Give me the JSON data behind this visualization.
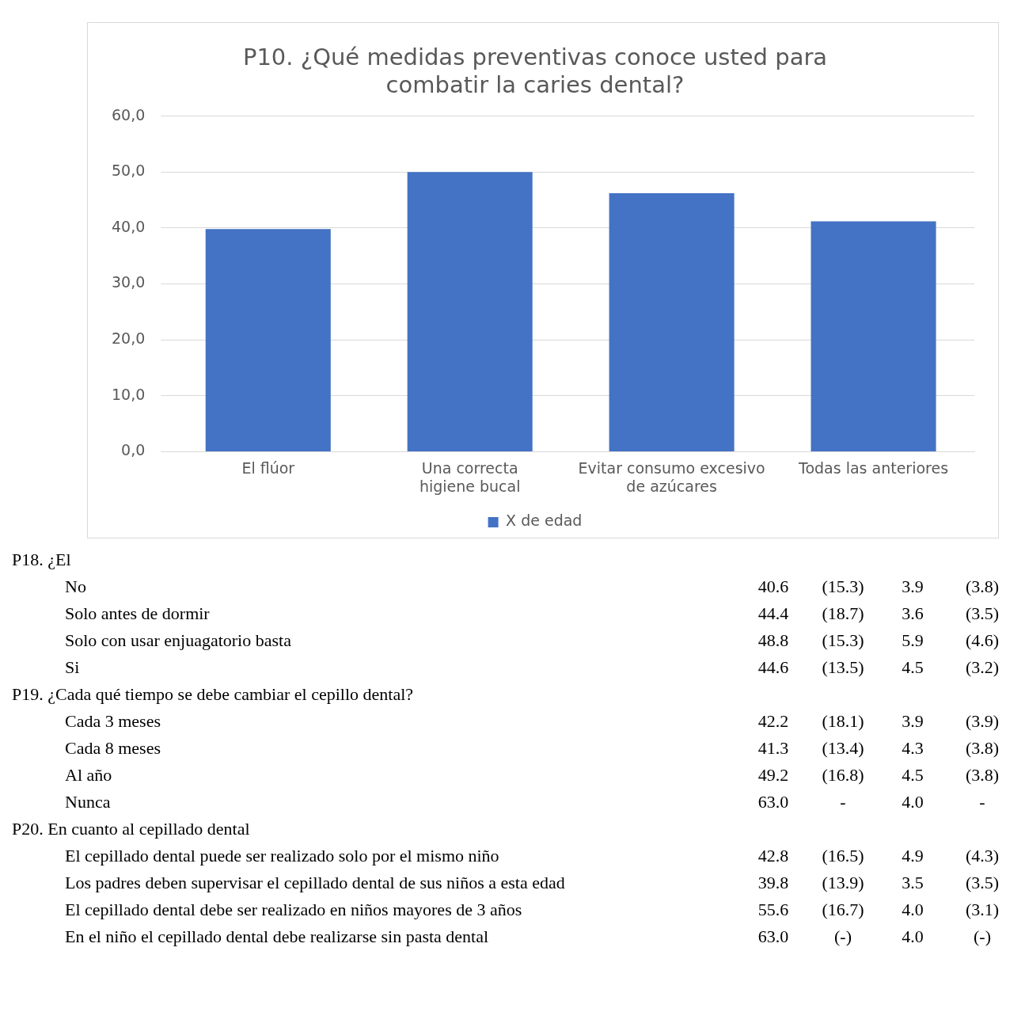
{
  "chart_data": {
    "type": "bar",
    "title": "P10. ¿Qué medidas preventivas conoce usted para combatir la caries dental?",
    "categories": [
      "El flúor",
      "Una correcta higiene bucal",
      "Evitar consumo excesivo de azúcares",
      "Todas las anteriores"
    ],
    "series": [
      {
        "name": "X de edad",
        "color": "#4472c4",
        "values": [
          39.8,
          50.0,
          46.2,
          41.2
        ]
      }
    ],
    "ylim": [
      0,
      60
    ],
    "yticks": [
      {
        "value": 0,
        "label": "0,0"
      },
      {
        "value": 10,
        "label": "10,0"
      },
      {
        "value": 20,
        "label": "20,0"
      },
      {
        "value": 30,
        "label": "30,0"
      },
      {
        "value": 40,
        "label": "40,0"
      },
      {
        "value": 50,
        "label": "50,0"
      },
      {
        "value": 60,
        "label": "60,0"
      }
    ],
    "grid": "y",
    "legend": "bottom",
    "annotations": [
      "P18. ¿El",
      "No  40.6  (15.3)  3.9  (3.8)",
      "Solo antes de dormir  44.4  (18.7)  3.6  (3.5)",
      "Solo con usar enjuagatorio basta  48.8  (15.3)  5.9  (4.6)",
      "Si  44.6  (13.5)  4.5  (3.2)",
      "P19. ¿Cada qué tiempo se debe cambiar el cepillo dental?",
      "Cada 3 meses  42.2  (18.1)  3.9  (3.9)",
      "Cada 8 meses  41.3  (13.4)  4.3  (3.8)",
      "Al año  49.2  (16.8)  4.5  (3.8)",
      "Nunca  63.0  -  4.0  -",
      "P20. En cuanto al cepillado dental",
      "El cepillado dental puede ser realizado solo por el mismo niño  42.8  (16.5)  4.9  (4.3)",
      "Los padres deben supervisar el cepillado dental de sus niños a esta edad  39.8  (13.9)  3.5  (3.5)",
      "El cepillado dental debe ser realizado en niños mayores de 3 años  55.6  (16.7)  4.0  (3.1)",
      "En el niño el cepillado dental debe realizarse sin pasta dental  63.0  (-)  4.0  (-)"
    ]
  }
}
